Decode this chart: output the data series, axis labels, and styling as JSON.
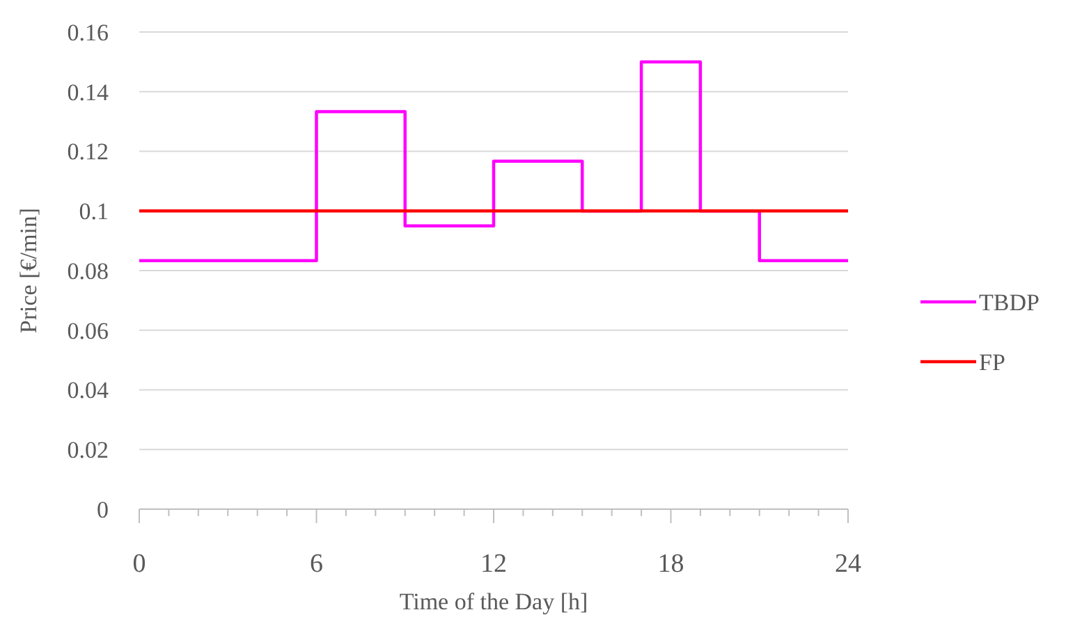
{
  "chart_data": {
    "type": "step",
    "xlabel": "Time of the Day [h]",
    "ylabel": "Price [€/min]",
    "xlim": [
      0,
      24
    ],
    "ylim": [
      0,
      0.16
    ],
    "xticks": [
      0,
      {
        "value": 1,
        "label": null
      },
      {
        "value": 2,
        "label": null
      },
      {
        "value": 3,
        "label": null
      },
      {
        "value": 4,
        "label": null
      },
      {
        "value": 5,
        "label": null
      },
      6,
      {
        "value": 7,
        "label": null
      },
      {
        "value": 8,
        "label": null
      },
      {
        "value": 9,
        "label": null
      },
      {
        "value": 10,
        "label": null
      },
      {
        "value": 11,
        "label": null
      },
      12,
      {
        "value": 13,
        "label": null
      },
      {
        "value": 14,
        "label": null
      },
      {
        "value": 15,
        "label": null
      },
      {
        "value": 16,
        "label": null
      },
      {
        "value": 17,
        "label": null
      },
      18,
      {
        "value": 19,
        "label": null
      },
      {
        "value": 20,
        "label": null
      },
      {
        "value": 21,
        "label": null
      },
      {
        "value": 22,
        "label": null
      },
      {
        "value": 23,
        "label": null
      },
      24
    ],
    "yticks": [
      0,
      0.02,
      0.04,
      0.06,
      0.08,
      0.1,
      0.12,
      0.14,
      0.16
    ],
    "grid": "y",
    "legend": "right",
    "series": [
      {
        "name": "TBDP",
        "color": "#ff00ff",
        "x": [
          0,
          6,
          9,
          12,
          15,
          17,
          19,
          21,
          24
        ],
        "values": [
          0.0833,
          0.1333,
          0.095,
          0.1167,
          0.1,
          0.15,
          0.1,
          0.0833,
          0.0833
        ]
      },
      {
        "name": "FP",
        "color": "#ff0000",
        "type": "line",
        "x": [
          0,
          24
        ],
        "values": [
          0.1,
          0.1
        ]
      }
    ]
  }
}
